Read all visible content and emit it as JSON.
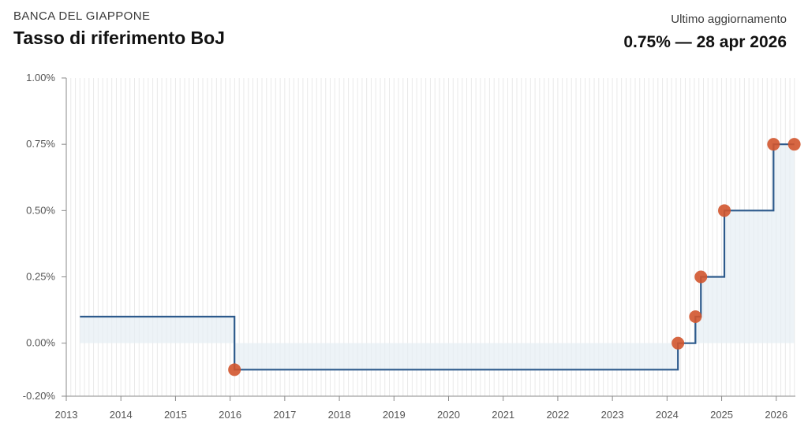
{
  "header": {
    "kicker": "BANCA DEL GIAPPONE",
    "title": "Tasso di riferimento BoJ",
    "update_label": "Ultimo aggiornamento",
    "update_value": "0.75% — 28 apr 2026"
  },
  "colors": {
    "line": "#2d5a8c",
    "marker": "#d2552e",
    "fill": "#e6eef3",
    "grid": "#e9e9e9",
    "axis": "#8a8a8a"
  },
  "chart_data": {
    "type": "line",
    "step": "post",
    "x_start": 2013.25,
    "x_end": 2026.33,
    "xlim": [
      2013.0,
      2026.35
    ],
    "ylim": [
      -0.2,
      1.0
    ],
    "x_ticks": [
      "2013",
      "2014",
      "2015",
      "2016",
      "2017",
      "2018",
      "2019",
      "2020",
      "2021",
      "2022",
      "2023",
      "2024",
      "2025",
      "2026"
    ],
    "y_ticks": [
      -0.2,
      0.0,
      0.25,
      0.5,
      0.75,
      1.0
    ],
    "y_tick_labels": [
      "-0.20%",
      "0.00%",
      "0.25%",
      "0.50%",
      "0.75%",
      "1.00%"
    ],
    "initial_value": 0.1,
    "changes": [
      {
        "x": 2016.08,
        "y": -0.1
      },
      {
        "x": 2024.2,
        "y": 0.0
      },
      {
        "x": 2024.52,
        "y": 0.1
      },
      {
        "x": 2024.62,
        "y": 0.25
      },
      {
        "x": 2025.05,
        "y": 0.5
      },
      {
        "x": 2025.95,
        "y": 0.75
      },
      {
        "x": 2026.33,
        "y": 0.75
      }
    ],
    "grid": true
  }
}
